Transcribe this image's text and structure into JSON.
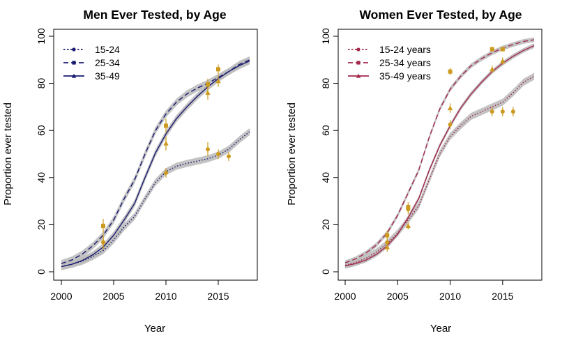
{
  "chart_data": [
    {
      "type": "line",
      "title": "Men Ever Tested, by Age",
      "xlabel": "Year",
      "ylabel": "Proportion ever tested",
      "xlim": [
        2000,
        2018
      ],
      "ylim": [
        0,
        100
      ],
      "x_ticks": [
        "2000",
        "2005",
        "2010",
        "2015"
      ],
      "y_ticks": [
        "0",
        "20",
        "40",
        "60",
        "80",
        "100"
      ],
      "legend_position": "top-left",
      "uncertainty_band_color": "#bdbdbd",
      "observation_color": "#cc9a1f",
      "series": [
        {
          "name": "15-24",
          "color": "#191970",
          "line_style": "dotted",
          "marker": "circle",
          "x": [
            2000,
            2001,
            2002,
            2003,
            2004,
            2005,
            2006,
            2007,
            2008,
            2009,
            2010,
            2011,
            2012,
            2013,
            2014,
            2015,
            2016,
            2017,
            2018
          ],
          "values": [
            2.2,
            3.2,
            4.5,
            6.5,
            9.0,
            13.5,
            19.0,
            23.5,
            31.0,
            38.0,
            42.5,
            44.8,
            46.0,
            47.0,
            48.0,
            49.5,
            52.0,
            56.0,
            59.5
          ],
          "band_halfwidth": 1.5,
          "observations": [
            {
              "x": 2004,
              "y": 12.5,
              "err": 3.0
            },
            {
              "x": 2010,
              "y": 42.0,
              "err": 2.0
            },
            {
              "x": 2014,
              "y": 52.0,
              "err": 3.0
            },
            {
              "x": 2015,
              "y": 50.0,
              "err": 2.0
            },
            {
              "x": 2016,
              "y": 49.0,
              "err": 2.0
            }
          ]
        },
        {
          "name": "25-34",
          "color": "#191970",
          "line_style": "dashed",
          "marker": "square",
          "x": [
            2000,
            2001,
            2002,
            2003,
            2004,
            2005,
            2006,
            2007,
            2008,
            2009,
            2010,
            2011,
            2012,
            2013,
            2014,
            2015,
            2016,
            2017,
            2018
          ],
          "values": [
            3.5,
            5.0,
            7.5,
            11.0,
            15.5,
            22.0,
            31.0,
            39.0,
            50.0,
            60.0,
            67.0,
            72.0,
            75.5,
            78.0,
            80.0,
            82.5,
            85.0,
            88.0,
            90.0
          ],
          "band_halfwidth": 1.5,
          "observations": [
            {
              "x": 2004,
              "y": 19.5,
              "err": 3.0
            },
            {
              "x": 2010,
              "y": 62.0,
              "err": 3.0
            },
            {
              "x": 2014,
              "y": 79.5,
              "err": 2.5
            },
            {
              "x": 2015,
              "y": 86.0,
              "err": 2.0
            }
          ]
        },
        {
          "name": "35-49",
          "color": "#191970",
          "line_style": "solid",
          "marker": "triangle",
          "x": [
            2000,
            2001,
            2002,
            2003,
            2004,
            2005,
            2006,
            2007,
            2008,
            2009,
            2010,
            2011,
            2012,
            2013,
            2014,
            2015,
            2016,
            2017,
            2018
          ],
          "values": [
            2.2,
            3.2,
            4.8,
            7.2,
            10.5,
            15.5,
            22.0,
            29.0,
            40.0,
            50.5,
            58.5,
            65.0,
            70.0,
            74.5,
            78.5,
            82.0,
            85.0,
            87.5,
            89.5
          ],
          "band_halfwidth": 1.5,
          "observations": [
            {
              "x": 2004,
              "y": 13.0,
              "err": 3.0
            },
            {
              "x": 2010,
              "y": 54.5,
              "err": 3.0
            },
            {
              "x": 2014,
              "y": 76.0,
              "err": 3.0
            },
            {
              "x": 2015,
              "y": 81.0,
              "err": 2.5
            }
          ]
        }
      ]
    },
    {
      "type": "line",
      "title": "Women Ever Tested, by Age",
      "xlabel": "Year",
      "ylabel": "Proportion ever tested",
      "xlim": [
        2000,
        2018
      ],
      "ylim": [
        0,
        100
      ],
      "x_ticks": [
        "2000",
        "2005",
        "2010",
        "2015"
      ],
      "y_ticks": [
        "0",
        "20",
        "40",
        "60",
        "80",
        "100"
      ],
      "legend_position": "top-left",
      "uncertainty_band_color": "#bdbdbd",
      "observation_color": "#cc9a1f",
      "series": [
        {
          "name": "15-24 years",
          "color": "#a3274b",
          "line_style": "dotted",
          "marker": "circle",
          "x": [
            2000,
            2001,
            2002,
            2003,
            2004,
            2005,
            2006,
            2007,
            2008,
            2009,
            2010,
            2011,
            2012,
            2013,
            2014,
            2015,
            2016,
            2017,
            2018
          ],
          "values": [
            2.8,
            4.0,
            5.8,
            8.5,
            12.0,
            16.5,
            22.0,
            28.0,
            39.0,
            50.0,
            57.5,
            62.0,
            66.0,
            68.0,
            70.0,
            72.0,
            76.0,
            80.5,
            83.0
          ],
          "band_halfwidth": 1.5,
          "observations": [
            {
              "x": 2004,
              "y": 12.5,
              "err": 2.0
            },
            {
              "x": 2006,
              "y": 26.5,
              "err": 2.0
            },
            {
              "x": 2010,
              "y": 62.5,
              "err": 2.0
            },
            {
              "x": 2014,
              "y": 68.0,
              "err": 2.0
            },
            {
              "x": 2015,
              "y": 68.0,
              "err": 2.0
            },
            {
              "x": 2016,
              "y": 68.0,
              "err": 2.0
            }
          ]
        },
        {
          "name": "25-34 years",
          "color": "#a3274b",
          "line_style": "dashed",
          "marker": "square",
          "x": [
            2000,
            2001,
            2002,
            2003,
            2004,
            2005,
            2006,
            2007,
            2008,
            2009,
            2010,
            2011,
            2012,
            2013,
            2014,
            2015,
            2016,
            2017,
            2018
          ],
          "values": [
            3.8,
            5.5,
            8.0,
            11.5,
            16.5,
            24.0,
            33.5,
            43.0,
            57.0,
            69.0,
            77.5,
            83.0,
            87.5,
            90.5,
            93.0,
            95.0,
            96.5,
            97.8,
            98.5
          ],
          "band_halfwidth": 1.0,
          "observations": [
            {
              "x": 2004,
              "y": 15.5,
              "err": 2.0
            },
            {
              "x": 2006,
              "y": 27.5,
              "err": 2.0
            },
            {
              "x": 2010,
              "y": 85.0,
              "err": 1.5
            },
            {
              "x": 2014,
              "y": 94.5,
              "err": 1.0
            },
            {
              "x": 2015,
              "y": 94.5,
              "err": 1.0
            }
          ]
        },
        {
          "name": "35-49 years",
          "color": "#a3274b",
          "line_style": "solid",
          "marker": "triangle",
          "x": [
            2000,
            2001,
            2002,
            2003,
            2004,
            2005,
            2006,
            2007,
            2008,
            2009,
            2010,
            2011,
            2012,
            2013,
            2014,
            2015,
            2016,
            2017,
            2018
          ],
          "values": [
            2.5,
            3.5,
            5.0,
            7.5,
            11.0,
            16.0,
            23.0,
            31.0,
            43.0,
            53.5,
            62.0,
            69.5,
            75.5,
            80.5,
            85.0,
            88.5,
            91.5,
            94.0,
            96.0
          ],
          "band_halfwidth": 1.0,
          "observations": [
            {
              "x": 2004,
              "y": 10.5,
              "err": 2.0
            },
            {
              "x": 2006,
              "y": 19.5,
              "err": 1.5
            },
            {
              "x": 2010,
              "y": 69.5,
              "err": 2.0
            },
            {
              "x": 2014,
              "y": 86.0,
              "err": 1.5
            },
            {
              "x": 2015,
              "y": 89.5,
              "err": 1.5
            }
          ]
        }
      ]
    }
  ]
}
